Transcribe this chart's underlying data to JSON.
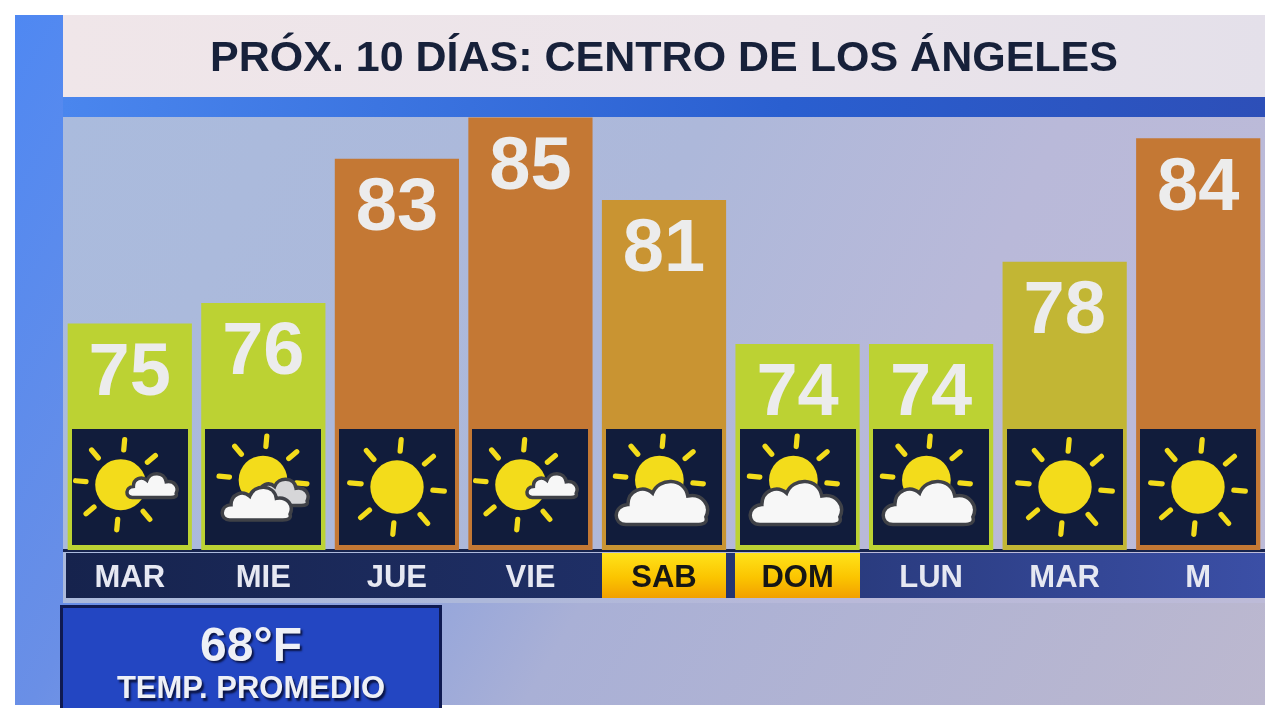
{
  "chart_data": {
    "type": "bar",
    "title": "PRÓX. 10 DÍAS: CENTRO DE LOS ÁNGELES",
    "categories": [
      "MAR",
      "MIE",
      "JUE",
      "VIE",
      "SAB",
      "DOM",
      "LUN",
      "MAR",
      "M"
    ],
    "values": [
      75,
      76,
      83,
      85,
      81,
      74,
      74,
      78,
      84
    ],
    "colors": [
      "#bcd233",
      "#bcd233",
      "#c47834",
      "#c47834",
      "#c99432",
      "#bcd233",
      "#bcd233",
      "#c2b634",
      "#c47834"
    ],
    "data_labels": true,
    "ylim": [
      64,
      86
    ],
    "tick_labels": "x",
    "annotations": [
      "68°F",
      "TEMP. PROMEDIO"
    ]
  }
}
